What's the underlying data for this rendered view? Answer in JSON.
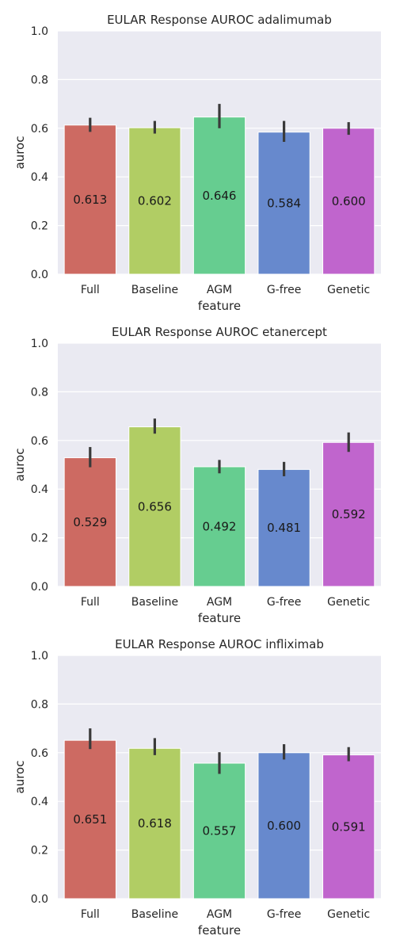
{
  "chart_data": [
    {
      "type": "bar",
      "title": "EULAR Response AUROC adalimumab",
      "xlabel": "feature",
      "ylabel": "auroc",
      "ylim": [
        0,
        1
      ],
      "yticks": [
        "0.0",
        "0.2",
        "0.4",
        "0.6",
        "0.8",
        "1.0"
      ],
      "categories": [
        "Full",
        "Baseline",
        "AGM",
        "G-free",
        "Genetic"
      ],
      "values": [
        0.613,
        0.602,
        0.646,
        0.584,
        0.6
      ],
      "value_labels": [
        "0.613",
        "0.602",
        "0.646",
        "0.584",
        "0.600"
      ],
      "ci_low": [
        0.585,
        0.578,
        0.6,
        0.544,
        0.573
      ],
      "ci_high": [
        0.643,
        0.63,
        0.7,
        0.63,
        0.625
      ],
      "colors": [
        "#cd6a62",
        "#b1cd64",
        "#66cd90",
        "#6789cd",
        "#c065cd"
      ],
      "grid": true
    },
    {
      "type": "bar",
      "title": "EULAR Response AUROC etanercept",
      "xlabel": "feature",
      "ylabel": "auroc",
      "ylim": [
        0,
        1
      ],
      "yticks": [
        "0.0",
        "0.2",
        "0.4",
        "0.6",
        "0.8",
        "1.0"
      ],
      "categories": [
        "Full",
        "Baseline",
        "AGM",
        "G-free",
        "Genetic"
      ],
      "values": [
        0.529,
        0.656,
        0.492,
        0.481,
        0.592
      ],
      "value_labels": [
        "0.529",
        "0.656",
        "0.492",
        "0.481",
        "0.592"
      ],
      "ci_low": [
        0.49,
        0.628,
        0.465,
        0.453,
        0.553
      ],
      "ci_high": [
        0.573,
        0.69,
        0.52,
        0.512,
        0.633
      ],
      "colors": [
        "#cd6a62",
        "#b1cd64",
        "#66cd90",
        "#6789cd",
        "#c065cd"
      ],
      "grid": true
    },
    {
      "type": "bar",
      "title": "EULAR Response AUROC infliximab",
      "xlabel": "feature",
      "ylabel": "auroc",
      "ylim": [
        0,
        1
      ],
      "yticks": [
        "0.0",
        "0.2",
        "0.4",
        "0.6",
        "0.8",
        "1.0"
      ],
      "categories": [
        "Full",
        "Baseline",
        "AGM",
        "G-free",
        "Genetic"
      ],
      "values": [
        0.651,
        0.618,
        0.557,
        0.6,
        0.591
      ],
      "value_labels": [
        "0.651",
        "0.618",
        "0.557",
        "0.600",
        "0.591"
      ],
      "ci_low": [
        0.615,
        0.59,
        0.513,
        0.572,
        0.565
      ],
      "ci_high": [
        0.7,
        0.66,
        0.602,
        0.635,
        0.623
      ],
      "colors": [
        "#cd6a62",
        "#b1cd64",
        "#66cd90",
        "#6789cd",
        "#c065cd"
      ],
      "grid": true
    }
  ]
}
